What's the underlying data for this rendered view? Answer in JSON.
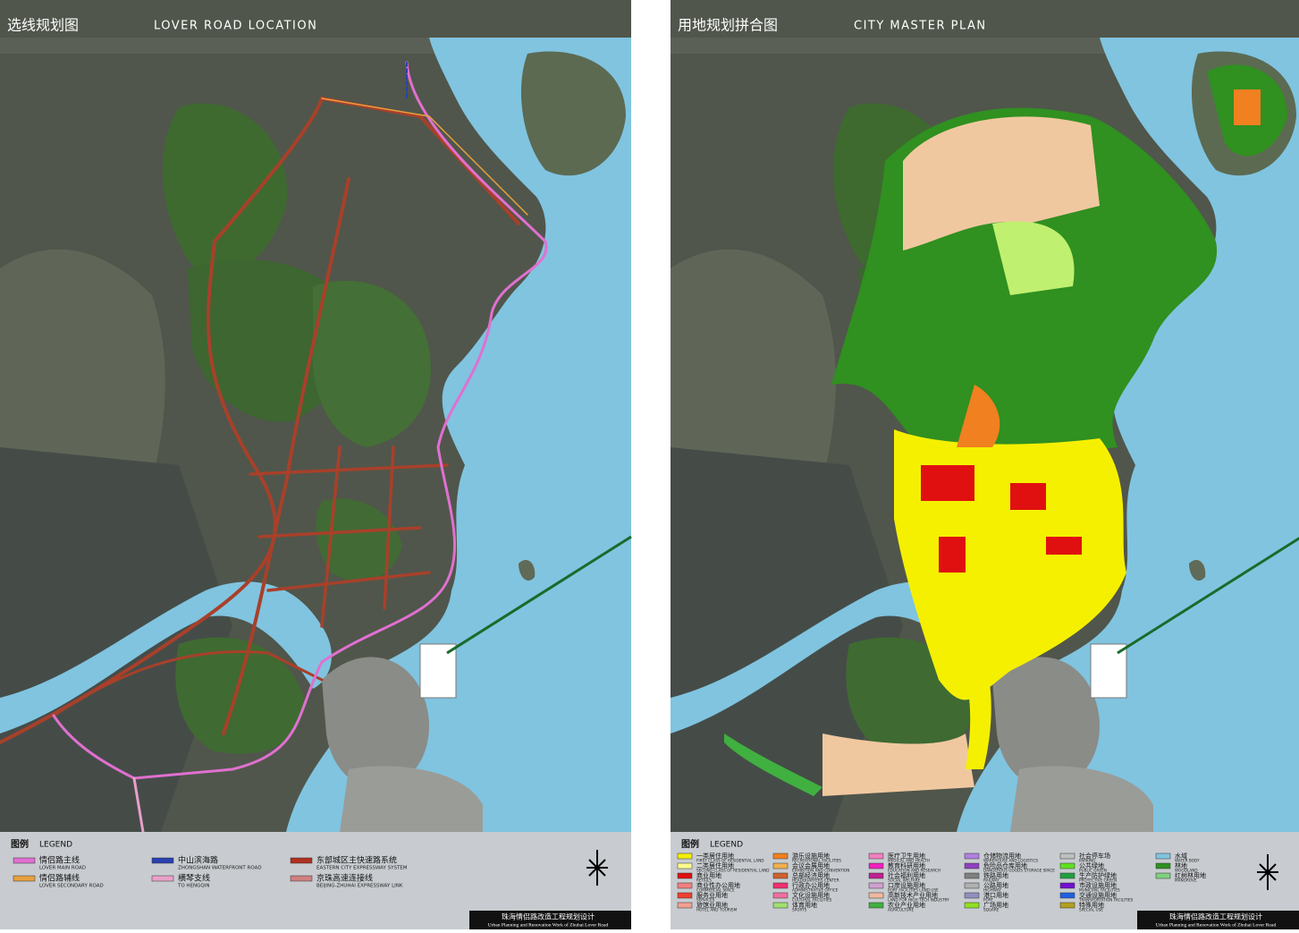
{
  "panels": [
    {
      "title_cn": "选线规划图",
      "title_en": "LOVER ROAD LOCATION",
      "legend_cn": "图例",
      "legend_en": "LEGEND",
      "legend": [
        {
          "cn": "情侣路主线",
          "en": "LOVER MAIN ROAD",
          "color": "#e070d0"
        },
        {
          "cn": "情侣路辅线",
          "en": "LOVER SECONDARY ROAD",
          "color": "#e8a040"
        },
        {
          "cn": "中山滨海路",
          "en": "ZHONGSHAN WATERFRONT ROAD",
          "color": "#2a40b0"
        },
        {
          "cn": "横琴支线",
          "en": "TO HENGQIN",
          "color": "#e8a0c8"
        },
        {
          "cn": "东部城区主快速路系统",
          "en": "EASTERN CITY EXPRESSWAY SYSTEM",
          "color": "#b03020"
        },
        {
          "cn": "京珠高速连接线",
          "en": "BEIJING-ZHUHAI EXPRESSWAY LINK",
          "color": "#d08080"
        }
      ],
      "footer_cn": "珠海情侣路改造工程规划设计",
      "footer_en": "Urban Planning and Renovation Work of Zhuhai Lover Road"
    },
    {
      "title_cn": "用地规划拼合图",
      "title_en": "CITY MASTER PLAN",
      "legend_cn": "图例",
      "legend_en": "LEGEND",
      "legend": [
        {
          "cn": "一类居住用地",
          "en": "FIRST CLASS OF RESIDENTIAL LAND",
          "color": "#f5f000"
        },
        {
          "cn": "二类居住用地",
          "en": "SECOND CLASS OF RESIDENTIAL LAND",
          "color": "#fafa90"
        },
        {
          "cn": "商业用地",
          "en": "RETAILS",
          "color": "#e01010"
        },
        {
          "cn": "商业性办公用地",
          "en": "COMMERCIAL SPACE",
          "color": "#f08080"
        },
        {
          "cn": "服务业用地",
          "en": "SERVICES",
          "color": "#f04030"
        },
        {
          "cn": "旅馆业用地",
          "en": "HOTEL AND TOURISM",
          "color": "#f0a090"
        },
        {
          "cn": "游乐设施用地",
          "en": "RECREATIONAL FACILITIES",
          "color": "#f08020"
        },
        {
          "cn": "会议会展用地",
          "en": "EXHIBITION AND CONVENTION",
          "color": "#f0b050"
        },
        {
          "cn": "总部经济用地",
          "en": "HEADQUARTERS CENTER",
          "color": "#d06030"
        },
        {
          "cn": "行政办公用地",
          "en": "ADMINISTRATIVE OFFICE",
          "color": "#f03070"
        },
        {
          "cn": "文化设施用地",
          "en": "CULTURAL FACILITIES",
          "color": "#f070a0"
        },
        {
          "cn": "体育用地",
          "en": "SPORTS",
          "color": "#a0e070"
        },
        {
          "cn": "医疗卫生用地",
          "en": "MEDICAL AND HEALTH",
          "color": "#f080c0"
        },
        {
          "cn": "教育科研用地",
          "en": "EDUCATION AND RESEARCH",
          "color": "#f020c0"
        },
        {
          "cn": "社会福利用地",
          "en": "SOCIAL WELFARE",
          "color": "#c02090"
        },
        {
          "cn": "口岸设施用地",
          "en": "PORT FACILITIES LAND USE",
          "color": "#d0a0d0"
        },
        {
          "cn": "高新技术产业用地",
          "en": "LAND FOR HIGH TECH INDUSTRY",
          "color": "#f0b8a0"
        },
        {
          "cn": "农业产业用地",
          "en": "AGRICULTURE",
          "color": "#40b040"
        },
        {
          "cn": "仓储物流用地",
          "en": "WAREHOUSE AND LOGISTICS",
          "color": "#b080e0"
        },
        {
          "cn": "危险品仓库用地",
          "en": "DANGEROUS GOODS STORAGE SPACE",
          "color": "#9040c0"
        },
        {
          "cn": "铁路用地",
          "en": "RAILWAY",
          "color": "#808080"
        },
        {
          "cn": "公路用地",
          "en": "HIGHWAY",
          "color": "#b0b0b0"
        },
        {
          "cn": "港口用地",
          "en": "PORT",
          "color": "#9090c0"
        },
        {
          "cn": "广场用地",
          "en": "SQUARE",
          "color": "#90e020"
        },
        {
          "cn": "社会停车场",
          "en": "PARKING",
          "color": "#c0c0c0"
        },
        {
          "cn": "公共绿地",
          "en": "PUBLIC GREEN",
          "color": "#60e020"
        },
        {
          "cn": "生产防护绿地",
          "en": "PROTECTIVE GREEN",
          "color": "#20a040"
        },
        {
          "cn": "市政设施用地",
          "en": "MUNICIPAL FACILITIES",
          "color": "#7010d0"
        },
        {
          "cn": "交通设施用地",
          "en": "TRANSPORTATION FACILITIES",
          "color": "#2060e0"
        },
        {
          "cn": "特殊用地",
          "en": "SPECIAL USE",
          "color": "#b0a020"
        },
        {
          "cn": "水域",
          "en": "WATER BODY",
          "color": "#80c4e0"
        },
        {
          "cn": "林地",
          "en": "WOODLAND",
          "color": "#309020"
        },
        {
          "cn": "红树林用地",
          "en": "MANGROVE",
          "color": "#80d080"
        }
      ],
      "footer_cn": "珠海情侣路改造工程规划设计",
      "footer_en": "Urban Planning and Renovation Work of Zhuhai Lover Road"
    }
  ]
}
